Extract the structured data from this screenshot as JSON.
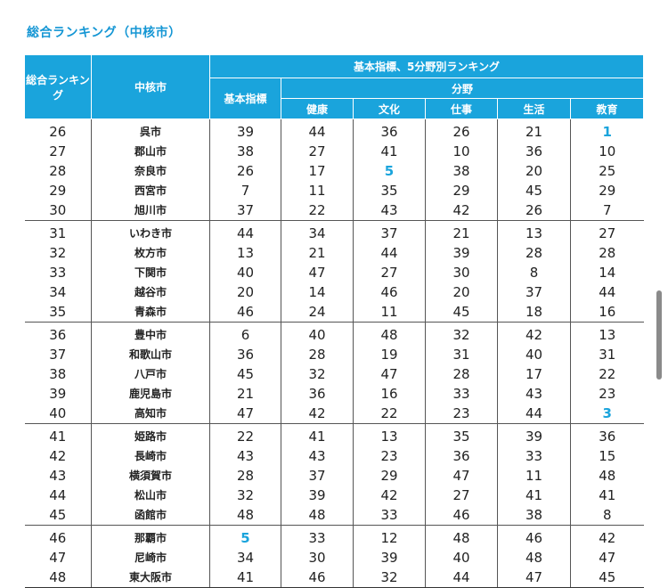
{
  "title": "総合ランキング（中核市）",
  "headers": {
    "overall": "総合ランキング",
    "city": "中核市",
    "group": "基本指標、5分野別ランキング",
    "basic": "基本指標",
    "fields_group": "分野",
    "fields": [
      "健康",
      "文化",
      "仕事",
      "生活",
      "教育"
    ]
  },
  "rows": [
    {
      "rank": "26",
      "city": "呉市",
      "basic": "39",
      "health": "44",
      "culture": "36",
      "work": "26",
      "life": "21",
      "edu": "1",
      "hl": "edu"
    },
    {
      "rank": "27",
      "city": "郡山市",
      "basic": "38",
      "health": "27",
      "culture": "41",
      "work": "10",
      "life": "36",
      "edu": "10"
    },
    {
      "rank": "28",
      "city": "奈良市",
      "basic": "26",
      "health": "17",
      "culture": "5",
      "work": "38",
      "life": "20",
      "edu": "25",
      "hl": "culture"
    },
    {
      "rank": "29",
      "city": "西宮市",
      "basic": "7",
      "health": "11",
      "culture": "35",
      "work": "29",
      "life": "45",
      "edu": "29"
    },
    {
      "rank": "30",
      "city": "旭川市",
      "basic": "37",
      "health": "22",
      "culture": "43",
      "work": "42",
      "life": "26",
      "edu": "7"
    },
    {
      "rank": "31",
      "city": "いわき市",
      "basic": "44",
      "health": "34",
      "culture": "37",
      "work": "21",
      "life": "13",
      "edu": "27"
    },
    {
      "rank": "32",
      "city": "枚方市",
      "basic": "13",
      "health": "21",
      "culture": "44",
      "work": "39",
      "life": "28",
      "edu": "28"
    },
    {
      "rank": "33",
      "city": "下関市",
      "basic": "40",
      "health": "47",
      "culture": "27",
      "work": "30",
      "life": "8",
      "edu": "14"
    },
    {
      "rank": "34",
      "city": "越谷市",
      "basic": "20",
      "health": "14",
      "culture": "46",
      "work": "20",
      "life": "37",
      "edu": "44"
    },
    {
      "rank": "35",
      "city": "青森市",
      "basic": "46",
      "health": "24",
      "culture": "11",
      "work": "45",
      "life": "18",
      "edu": "16"
    },
    {
      "rank": "36",
      "city": "豊中市",
      "basic": "6",
      "health": "40",
      "culture": "48",
      "work": "32",
      "life": "42",
      "edu": "13"
    },
    {
      "rank": "37",
      "city": "和歌山市",
      "basic": "36",
      "health": "28",
      "culture": "19",
      "work": "31",
      "life": "40",
      "edu": "31"
    },
    {
      "rank": "38",
      "city": "八戸市",
      "basic": "45",
      "health": "32",
      "culture": "47",
      "work": "28",
      "life": "17",
      "edu": "22"
    },
    {
      "rank": "39",
      "city": "鹿児島市",
      "basic": "21",
      "health": "36",
      "culture": "16",
      "work": "33",
      "life": "43",
      "edu": "23"
    },
    {
      "rank": "40",
      "city": "高知市",
      "basic": "47",
      "health": "42",
      "culture": "22",
      "work": "23",
      "life": "44",
      "edu": "3",
      "hl": "edu"
    },
    {
      "rank": "41",
      "city": "姫路市",
      "basic": "22",
      "health": "41",
      "culture": "13",
      "work": "35",
      "life": "39",
      "edu": "36"
    },
    {
      "rank": "42",
      "city": "長崎市",
      "basic": "43",
      "health": "43",
      "culture": "23",
      "work": "36",
      "life": "33",
      "edu": "15"
    },
    {
      "rank": "43",
      "city": "横須賀市",
      "basic": "28",
      "health": "37",
      "culture": "29",
      "work": "47",
      "life": "11",
      "edu": "48"
    },
    {
      "rank": "44",
      "city": "松山市",
      "basic": "32",
      "health": "39",
      "culture": "42",
      "work": "27",
      "life": "41",
      "edu": "41"
    },
    {
      "rank": "45",
      "city": "函館市",
      "basic": "48",
      "health": "48",
      "culture": "33",
      "work": "46",
      "life": "38",
      "edu": "8"
    },
    {
      "rank": "46",
      "city": "那覇市",
      "basic": "5",
      "health": "33",
      "culture": "12",
      "work": "48",
      "life": "46",
      "edu": "42",
      "hl": "basic"
    },
    {
      "rank": "47",
      "city": "尼崎市",
      "basic": "34",
      "health": "30",
      "culture": "39",
      "work": "40",
      "life": "48",
      "edu": "47"
    },
    {
      "rank": "48",
      "city": "東大阪市",
      "basic": "41",
      "health": "46",
      "culture": "32",
      "work": "44",
      "life": "47",
      "edu": "45"
    }
  ],
  "colors": {
    "header_bg": "#1aa4dc",
    "highlight": "#1aa4dc",
    "title": "#1496d4"
  }
}
